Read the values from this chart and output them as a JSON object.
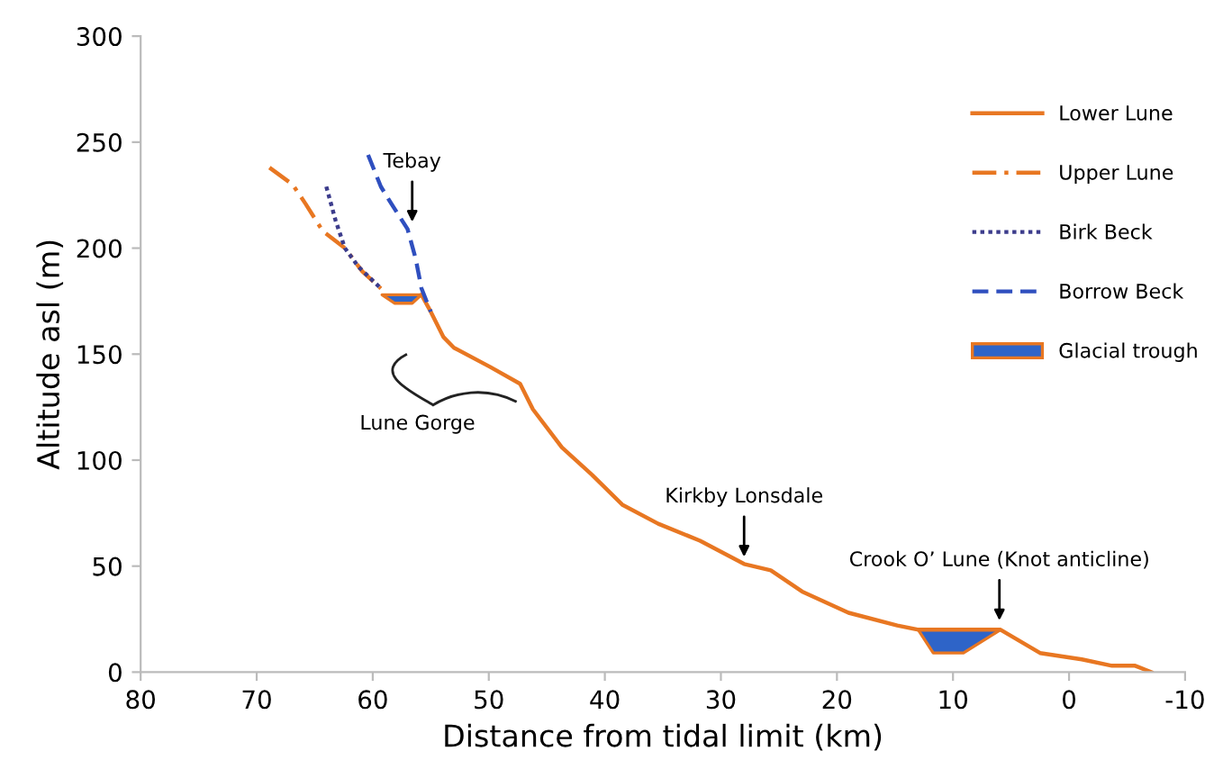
{
  "chart_data": {
    "type": "line",
    "xlabel": "Distance from tidal limit (km)",
    "ylabel": "Altitude asl (m)",
    "xlim": [
      80,
      -10
    ],
    "xticks": [
      80,
      70,
      60,
      50,
      40,
      30,
      20,
      10,
      0,
      -10
    ],
    "ylim": [
      0,
      300
    ],
    "yticks": [
      0,
      50,
      100,
      150,
      200,
      250,
      300
    ],
    "grid": false,
    "legend": "top right",
    "marker": "none",
    "series": [
      {
        "name": "Lower Lune",
        "color": "#e87722",
        "line_style": "solid",
        "x": [
          55.8,
          55.0,
          53.9,
          53.0,
          49.9,
          47.3,
          46.2,
          43.7,
          41.1,
          38.5,
          35.4,
          31.8,
          28.0,
          25.7,
          23.0,
          19.0,
          14.8,
          13.0,
          5.9,
          2.5,
          -1.1,
          -3.7,
          -5.7,
          -7.1
        ],
        "values": [
          178,
          170,
          158,
          153,
          144,
          136,
          124,
          106,
          93,
          79,
          70,
          62,
          51,
          48,
          38,
          28,
          22,
          20,
          20,
          9,
          6,
          3,
          3,
          0
        ]
      },
      {
        "name": "Upper Lune",
        "color": "#e87722",
        "line_style": "dashdot",
        "x": [
          68.9,
          66.9,
          65.8,
          64.3,
          62.4,
          60.9,
          59.3
        ],
        "values": [
          238,
          230,
          221,
          208,
          200,
          189,
          181
        ]
      },
      {
        "name": "Birk Beck",
        "color": "#3c3c8c",
        "line_style": "dotted",
        "x": [
          64.0,
          63.2,
          62.4,
          61.2,
          59.3
        ],
        "values": [
          229,
          213,
          200,
          191,
          181
        ]
      },
      {
        "name": "Borrow Beck",
        "color": "#2f4fbf",
        "line_style": "dashed",
        "x": [
          60.4,
          59.3,
          58.4,
          57.0,
          56.3,
          55.8,
          55.0
        ],
        "values": [
          244,
          229,
          221,
          209,
          195,
          181,
          170
        ]
      },
      {
        "name": "Glacial trough",
        "type": "area",
        "color": "#2e64c8",
        "x": [
          59.2,
          58.1,
          56.6,
          55.8,
          59.2
        ],
        "values": [
          178,
          174,
          174,
          178,
          178
        ]
      },
      {
        "type": "area",
        "color": "#2e64c8",
        "x": [
          13.0,
          11.7,
          9.1,
          5.9,
          13.0
        ],
        "values": [
          20,
          9,
          9,
          20,
          20
        ]
      }
    ],
    "annotations": [
      {
        "text": "Tebay",
        "x": 56.6,
        "y": 210
      },
      "Lune Gorge",
      {
        "text": "Kirkby Lonsdale",
        "x": 28,
        "y": 52
      },
      {
        "text": "Crook O’ Lune (Knot anticline)",
        "x": 6,
        "y": 22
      }
    ]
  }
}
